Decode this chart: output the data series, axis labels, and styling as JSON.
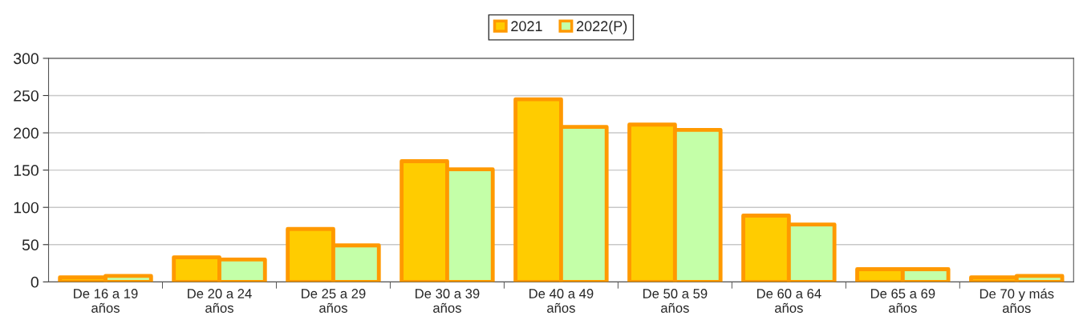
{
  "chart_data": {
    "type": "bar",
    "categories": [
      "De 16 a 19\naños",
      "De 20 a 24\naños",
      "De 25 a 29\naños",
      "De 30 a 39\naños",
      "De 40 a 49\naños",
      "De 50 a 59\naños",
      "De 60 a 64\naños",
      "De 65 a 69\naños",
      "De 70 y más\naños"
    ],
    "series": [
      {
        "name": "2021",
        "color": "#ffcc00",
        "values": [
          6,
          33,
          71,
          162,
          245,
          211,
          89,
          17,
          6
        ]
      },
      {
        "name": "2022(P)",
        "color": "#c4ffa8",
        "values": [
          8,
          30,
          49,
          151,
          208,
          204,
          77,
          17,
          8
        ]
      }
    ],
    "ylim": [
      0,
      300
    ],
    "yticks": [
      0,
      50,
      100,
      150,
      200,
      250,
      300
    ],
    "grid": "y",
    "legend": "top"
  }
}
